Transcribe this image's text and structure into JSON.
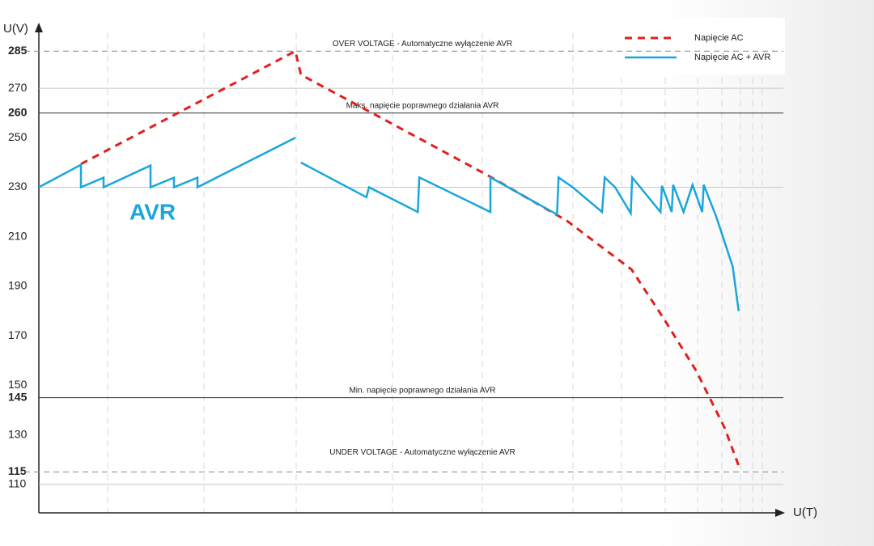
{
  "chart_data": {
    "type": "line",
    "xlabel": "U(T)",
    "ylabel": "U(V)",
    "xlim": [
      0,
      100
    ],
    "ylim": [
      98.5,
      296.5
    ],
    "yticks": [
      285,
      270,
      260,
      250,
      230,
      210,
      190,
      170,
      150,
      145,
      130,
      115,
      110
    ],
    "ytick_colors": [
      "#d42020",
      "#222222",
      "#d42020",
      "#222222",
      "#222222",
      "#222222",
      "#222222",
      "#222222",
      "#222222",
      "#d42020",
      "#222222",
      "#d42020",
      "#222222"
    ],
    "ytick_grid": [
      false,
      true,
      false,
      false,
      true,
      false,
      false,
      false,
      false,
      false,
      false,
      false,
      true
    ],
    "hlines": [
      {
        "value": 285,
        "style": "dashed",
        "label": "OVER VOLTAGE - Automatyczne wyłączenie AVR"
      },
      {
        "value": 260,
        "style": "solid",
        "label": "Maks. napięcie poprawnego działania AVR"
      },
      {
        "value": 145,
        "style": "solid",
        "label": "Min. napięcie poprawnego działania AVR"
      },
      {
        "value": 115,
        "style": "dashed",
        "label": "UNDER VOLTAGE - Automatyczne wyłączenie AVR"
      }
    ],
    "annotation": "AVR",
    "legend": "upper right",
    "series": [
      {
        "name": "Napięcie AC",
        "color": "#e0201c",
        "dash": true,
        "x": [
          5.65,
          34.46,
          35.2,
          60.5,
          70.9,
          79.6,
          83.9,
          88.3,
          92.1,
          94.0
        ],
        "values": [
          239.4,
          285,
          275.5,
          234.5,
          216.5,
          196.8,
          177.1,
          155.8,
          132.9,
          117.5
        ]
      },
      {
        "name": "Napięcie AC  + AVR",
        "color": "#1aa6dc",
        "dash": false,
        "x": [
          0,
          5.65,
          5.65,
          8.7,
          8.7,
          15.0,
          15.0,
          18.15,
          18.15,
          21.3,
          21.3,
          34.46,
          34.8,
          35.2,
          44.0,
          44.35,
          50.9,
          51.1,
          60.65,
          60.65,
          69.6,
          69.8,
          71.7,
          75.65,
          76.0,
          77.4,
          79.5,
          79.7,
          83.5,
          83.7,
          85.0,
          85.2,
          86.6,
          87.8,
          89.1,
          89.3,
          91.0,
          92.1,
          93.2,
          94.0
        ],
        "values": [
          230,
          239.1,
          230,
          233.9,
          230,
          238.8,
          230,
          233.9,
          230,
          233.9,
          230,
          250,
          null,
          240,
          226,
          230,
          220,
          234,
          220,
          234,
          219,
          234,
          230,
          220,
          234,
          230,
          219.5,
          234,
          220,
          230.6,
          220,
          231,
          220,
          231,
          220,
          231,
          218,
          208,
          198,
          180
        ]
      }
    ]
  }
}
